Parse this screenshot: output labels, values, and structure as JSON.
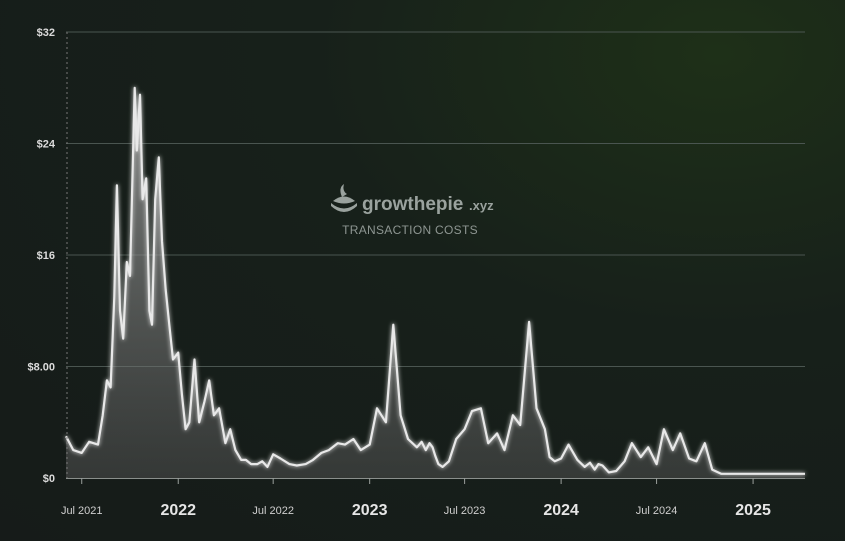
{
  "watermark": {
    "brand_name": "growthepie",
    "brand_suffix": ".xyz",
    "subtitle": "TRANSACTION COSTS"
  },
  "colors": {
    "line": "#e8e8e8",
    "area_top": "#9a9a9a",
    "grid": "#4a5550",
    "background": "#17201a"
  },
  "chart_data": {
    "type": "area",
    "title": "",
    "xlabel": "",
    "ylabel": "",
    "ylim": [
      0,
      32
    ],
    "xlim": [
      "2021-06-01",
      "2025-04-10"
    ],
    "grid": true,
    "y_ticks": [
      {
        "value": 0,
        "label": "$0"
      },
      {
        "value": 8,
        "label": "$8.00"
      },
      {
        "value": 16,
        "label": "$16"
      },
      {
        "value": 24,
        "label": "$24"
      },
      {
        "value": 32,
        "label": "$32"
      }
    ],
    "x_ticks": [
      {
        "date": "2021-07-01",
        "label": "Jul 2021",
        "major": false
      },
      {
        "date": "2022-01-01",
        "label": "2022",
        "major": true
      },
      {
        "date": "2022-07-01",
        "label": "Jul 2022",
        "major": false
      },
      {
        "date": "2023-01-01",
        "label": "2023",
        "major": true
      },
      {
        "date": "2023-07-01",
        "label": "Jul 2023",
        "major": false
      },
      {
        "date": "2024-01-01",
        "label": "2024",
        "major": true
      },
      {
        "date": "2024-07-01",
        "label": "Jul 2024",
        "major": false
      },
      {
        "date": "2025-01-01",
        "label": "2025",
        "major": true
      }
    ],
    "series": [
      {
        "x": [
          "2021-06-01",
          "2021-06-15",
          "2021-07-01",
          "2021-07-15",
          "2021-08-01",
          "2021-08-10",
          "2021-08-18",
          "2021-08-25",
          "2021-09-01",
          "2021-09-06",
          "2021-09-12",
          "2021-09-18",
          "2021-09-25",
          "2021-10-01",
          "2021-10-06",
          "2021-10-10",
          "2021-10-14",
          "2021-10-20",
          "2021-10-25",
          "2021-11-01",
          "2021-11-07",
          "2021-11-12",
          "2021-11-18",
          "2021-11-25",
          "2021-12-01",
          "2021-12-08",
          "2021-12-15",
          "2021-12-22",
          "2022-01-01",
          "2022-01-08",
          "2022-01-15",
          "2022-01-22",
          "2022-02-01",
          "2022-02-10",
          "2022-02-20",
          "2022-03-01",
          "2022-03-10",
          "2022-03-20",
          "2022-04-01",
          "2022-04-10",
          "2022-04-20",
          "2022-05-01",
          "2022-05-10",
          "2022-05-20",
          "2022-06-01",
          "2022-06-10",
          "2022-06-20",
          "2022-07-01",
          "2022-07-15",
          "2022-08-01",
          "2022-08-15",
          "2022-09-01",
          "2022-09-15",
          "2022-10-01",
          "2022-10-15",
          "2022-11-01",
          "2022-11-15",
          "2022-12-01",
          "2022-12-15",
          "2023-01-01",
          "2023-01-15",
          "2023-02-01",
          "2023-02-15",
          "2023-03-01",
          "2023-03-15",
          "2023-04-01",
          "2023-04-10",
          "2023-04-18",
          "2023-04-25",
          "2023-05-01",
          "2023-05-06",
          "2023-05-12",
          "2023-05-20",
          "2023-06-01",
          "2023-06-15",
          "2023-07-01",
          "2023-07-15",
          "2023-08-01",
          "2023-08-15",
          "2023-09-01",
          "2023-09-15",
          "2023-10-01",
          "2023-10-15",
          "2023-11-01",
          "2023-11-15",
          "2023-12-01",
          "2023-12-10",
          "2023-12-20",
          "2024-01-01",
          "2024-01-15",
          "2024-02-01",
          "2024-02-15",
          "2024-02-25",
          "2024-03-05",
          "2024-03-12",
          "2024-03-20",
          "2024-04-01",
          "2024-04-15",
          "2024-05-01",
          "2024-05-15",
          "2024-06-01",
          "2024-06-15",
          "2024-07-01",
          "2024-07-15",
          "2024-08-01",
          "2024-08-15",
          "2024-09-01",
          "2024-09-15",
          "2024-10-01",
          "2024-10-15",
          "2024-11-01",
          "2024-11-15",
          "2024-12-01",
          "2024-12-15",
          "2025-01-01",
          "2025-01-15",
          "2025-02-01",
          "2025-02-15",
          "2025-03-01",
          "2025-03-15",
          "2025-04-01",
          "2025-04-10"
        ],
        "values": [
          3.0,
          2.0,
          1.8,
          2.6,
          2.4,
          4.5,
          7.0,
          6.5,
          13.0,
          21.0,
          12.0,
          10.0,
          15.5,
          14.5,
          22.0,
          28.0,
          23.5,
          27.5,
          20.0,
          21.5,
          12.0,
          11.0,
          20.0,
          23.0,
          17.0,
          13.5,
          11.0,
          8.5,
          9.0,
          6.0,
          3.5,
          4.0,
          8.5,
          4.0,
          5.5,
          7.0,
          4.5,
          5.0,
          2.5,
          3.5,
          2.0,
          1.3,
          1.3,
          1.0,
          1.0,
          1.2,
          0.8,
          1.7,
          1.4,
          1.0,
          0.9,
          1.0,
          1.3,
          1.8,
          2.0,
          2.5,
          2.4,
          2.8,
          2.0,
          2.4,
          5.0,
          4.0,
          11.0,
          4.5,
          2.8,
          2.2,
          2.6,
          2.0,
          2.5,
          2.2,
          1.6,
          1.0,
          0.8,
          1.2,
          2.8,
          3.5,
          4.8,
          5.0,
          2.5,
          3.2,
          2.0,
          4.5,
          3.8,
          11.2,
          5.0,
          3.5,
          1.5,
          1.2,
          1.4,
          2.4,
          1.3,
          0.8,
          1.1,
          0.6,
          1.0,
          0.9,
          0.4,
          0.5,
          1.2,
          2.5,
          1.5,
          2.2,
          1.0,
          3.5,
          2.0,
          3.2,
          1.4,
          1.2,
          2.5,
          0.6,
          0.3,
          0.3,
          0.3,
          0.3,
          0.3,
          0.3,
          0.3,
          0.3,
          0.3,
          0.3,
          0.3,
          0.3
        ],
        "values_note": ""
      }
    ]
  }
}
